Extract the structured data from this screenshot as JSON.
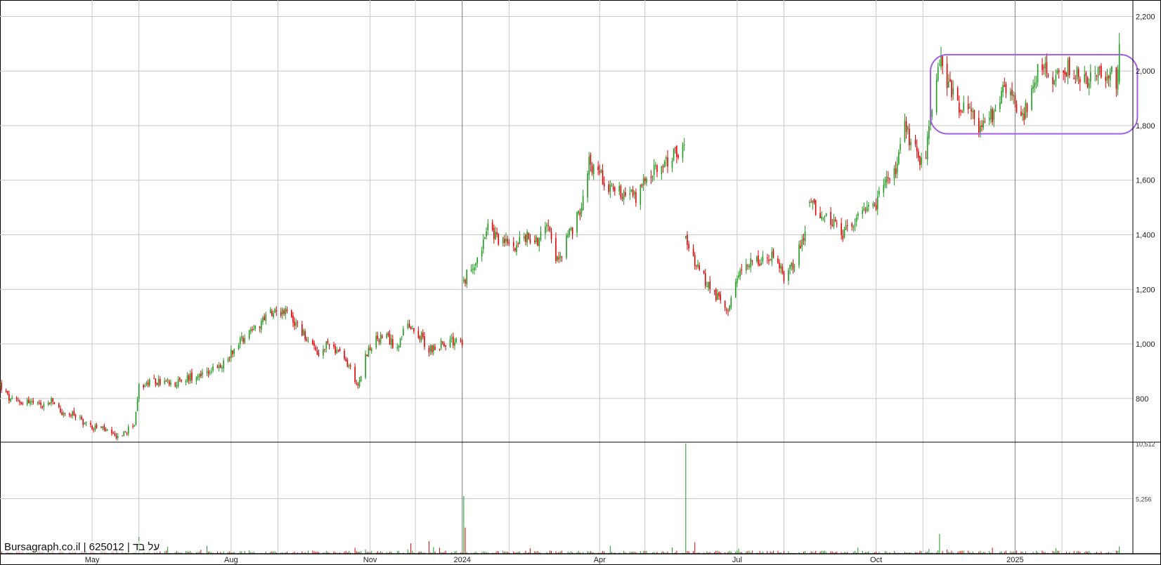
{
  "watermark": {
    "site": "Bursagraph.co.il",
    "security_id": "625012",
    "name": "על בד"
  },
  "chart_data": {
    "type": "candlestick",
    "grid": true,
    "price_axis": {
      "position": "right",
      "ylim": [
        640,
        2250
      ],
      "ticks": [
        800,
        1000,
        1200,
        1400,
        1600,
        1800,
        2000,
        2200
      ],
      "tick_labels": [
        "800",
        "1,000",
        "1,200",
        "1,400",
        "1,600",
        "1,800",
        "2,000",
        "2,200"
      ]
    },
    "volume_axis": {
      "position": "right",
      "ylim": [
        0,
        10512
      ],
      "ticks": [
        5256,
        10512
      ],
      "tick_labels": [
        "5,256",
        "10,512"
      ]
    },
    "x_axis": {
      "range": [
        "2023-03-01",
        "2025-03-20"
      ],
      "month_labels": [
        {
          "date": "2023-05-01",
          "label": "May"
        },
        {
          "date": "2023-08-01",
          "label": "Aug"
        },
        {
          "date": "2023-11-01",
          "label": "Nov"
        },
        {
          "date": "2024-01-01",
          "label": "2024"
        },
        {
          "date": "2024-04-01",
          "label": "Apr"
        },
        {
          "date": "2024-07-01",
          "label": "Jul"
        },
        {
          "date": "2024-10-01",
          "label": "Oct"
        },
        {
          "date": "2025-01-01",
          "label": "2025"
        }
      ],
      "minor_gridlines": [
        "2023-06-01",
        "2023-09-01",
        "2023-12-01",
        "2024-02-01",
        "2024-05-01",
        "2024-08-01",
        "2024-11-01",
        "2025-02-01"
      ],
      "major_gridlines": [
        "2024-01-01",
        "2025-01-01"
      ]
    },
    "price_path": [
      [
        "2023-03-01",
        850
      ],
      [
        "2023-03-08",
        790
      ],
      [
        "2023-03-20",
        790
      ],
      [
        "2023-03-28",
        770
      ],
      [
        "2023-04-05",
        790
      ],
      [
        "2023-04-12",
        740
      ],
      [
        "2023-04-20",
        740
      ],
      [
        "2023-04-28",
        700
      ],
      [
        "2023-05-08",
        690
      ],
      [
        "2023-05-15",
        660
      ],
      [
        "2023-05-22",
        670
      ],
      [
        "2023-05-29",
        710
      ],
      [
        "2023-06-01",
        840
      ],
      [
        "2023-06-10",
        860
      ],
      [
        "2023-06-20",
        860
      ],
      [
        "2023-06-28",
        860
      ],
      [
        "2023-07-05",
        880
      ],
      [
        "2023-07-15",
        900
      ],
      [
        "2023-07-25",
        910
      ],
      [
        "2023-08-01",
        970
      ],
      [
        "2023-08-08",
        1020
      ],
      [
        "2023-08-15",
        1060
      ],
      [
        "2023-08-22",
        1080
      ],
      [
        "2023-08-29",
        1130
      ],
      [
        "2023-09-05",
        1120
      ],
      [
        "2023-09-12",
        1080
      ],
      [
        "2023-09-20",
        1020
      ],
      [
        "2023-09-28",
        950
      ],
      [
        "2023-10-05",
        1010
      ],
      [
        "2023-10-12",
        960
      ],
      [
        "2023-10-18",
        920
      ],
      [
        "2023-10-24",
        850
      ],
      [
        "2023-10-30",
        970
      ],
      [
        "2023-11-06",
        1020
      ],
      [
        "2023-11-12",
        1020
      ],
      [
        "2023-11-18",
        990
      ],
      [
        "2023-11-25",
        1060
      ],
      [
        "2023-12-02",
        1050
      ],
      [
        "2023-12-10",
        980
      ],
      [
        "2023-12-18",
        1000
      ],
      [
        "2023-12-28",
        1010
      ],
      [
        "2024-01-02",
        1230
      ],
      [
        "2024-01-10",
        1310
      ],
      [
        "2024-01-18",
        1420
      ],
      [
        "2024-01-26",
        1380
      ],
      [
        "2024-02-03",
        1360
      ],
      [
        "2024-02-12",
        1390
      ],
      [
        "2024-02-20",
        1380
      ],
      [
        "2024-02-27",
        1460
      ],
      [
        "2024-03-04",
        1300
      ],
      [
        "2024-03-12",
        1400
      ],
      [
        "2024-03-18",
        1470
      ],
      [
        "2024-03-25",
        1660
      ],
      [
        "2024-04-02",
        1620
      ],
      [
        "2024-04-10",
        1560
      ],
      [
        "2024-04-18",
        1560
      ],
      [
        "2024-04-25",
        1530
      ],
      [
        "2024-05-02",
        1610
      ],
      [
        "2024-05-10",
        1640
      ],
      [
        "2024-05-18",
        1680
      ],
      [
        "2024-05-25",
        1720
      ],
      [
        "2024-05-28",
        1380
      ],
      [
        "2024-06-03",
        1300
      ],
      [
        "2024-06-10",
        1230
      ],
      [
        "2024-06-18",
        1170
      ],
      [
        "2024-06-25",
        1130
      ],
      [
        "2024-07-02",
        1240
      ],
      [
        "2024-07-10",
        1320
      ],
      [
        "2024-07-18",
        1300
      ],
      [
        "2024-07-25",
        1320
      ],
      [
        "2024-08-01",
        1250
      ],
      [
        "2024-08-08",
        1300
      ],
      [
        "2024-08-15",
        1400
      ],
      [
        "2024-08-18",
        1520
      ],
      [
        "2024-08-25",
        1480
      ],
      [
        "2024-09-01",
        1450
      ],
      [
        "2024-09-08",
        1390
      ],
      [
        "2024-09-15",
        1440
      ],
      [
        "2024-09-22",
        1470
      ],
      [
        "2024-09-30",
        1500
      ],
      [
        "2024-10-07",
        1600
      ],
      [
        "2024-10-14",
        1630
      ],
      [
        "2024-10-20",
        1790
      ],
      [
        "2024-10-26",
        1720
      ],
      [
        "2024-11-01",
        1650
      ],
      [
        "2024-11-06",
        1800
      ],
      [
        "2024-11-12",
        2040
      ],
      [
        "2024-11-18",
        1950
      ],
      [
        "2024-11-25",
        1880
      ],
      [
        "2024-12-02",
        1850
      ],
      [
        "2024-12-09",
        1790
      ],
      [
        "2024-12-16",
        1830
      ],
      [
        "2024-12-22",
        1920
      ],
      [
        "2024-12-28",
        1960
      ],
      [
        "2025-01-03",
        1800
      ],
      [
        "2025-01-08",
        1860
      ],
      [
        "2025-01-14",
        1980
      ],
      [
        "2025-01-20",
        2020
      ],
      [
        "2025-01-27",
        1960
      ],
      [
        "2025-02-03",
        2020
      ],
      [
        "2025-02-10",
        1990
      ],
      [
        "2025-02-18",
        1970
      ],
      [
        "2025-02-25",
        1980
      ],
      [
        "2025-03-04",
        2000
      ],
      [
        "2025-03-09",
        1960
      ],
      [
        "2025-03-11",
        2100
      ]
    ],
    "gaps": [
      [
        "2023-12-28",
        "2024-01-02"
      ],
      [
        "2024-05-25",
        "2024-05-28"
      ],
      [
        "2024-08-15",
        "2024-08-18"
      ]
    ],
    "volume_spikes": [
      {
        "date": "2023-06-01",
        "value": 1600
      },
      {
        "date": "2023-07-28",
        "value": 1100
      },
      {
        "date": "2023-08-18",
        "value": 1200
      },
      {
        "date": "2023-08-25",
        "value": 1400
      },
      {
        "date": "2023-11-28",
        "value": 1000
      },
      {
        "date": "2023-12-10",
        "value": 1200
      },
      {
        "date": "2024-01-02",
        "value": 5500
      },
      {
        "date": "2024-01-03",
        "value": 2500
      },
      {
        "date": "2024-05-28",
        "value": 10512
      },
      {
        "date": "2024-06-03",
        "value": 1100
      },
      {
        "date": "2024-11-12",
        "value": 1900
      },
      {
        "date": "2025-01-03",
        "value": 1000
      },
      {
        "date": "2025-03-11",
        "value": 700
      }
    ],
    "annotation": {
      "shape": "rounded-rectangle",
      "color": "#a35be8",
      "from": "2024-11-06",
      "to": "2025-03-23",
      "price_low": 1770,
      "price_high": 2060
    },
    "colors": {
      "up": "#1e9a1e",
      "down": "#e00000",
      "grid": "#c8c8c8",
      "axis": "#000000"
    }
  }
}
